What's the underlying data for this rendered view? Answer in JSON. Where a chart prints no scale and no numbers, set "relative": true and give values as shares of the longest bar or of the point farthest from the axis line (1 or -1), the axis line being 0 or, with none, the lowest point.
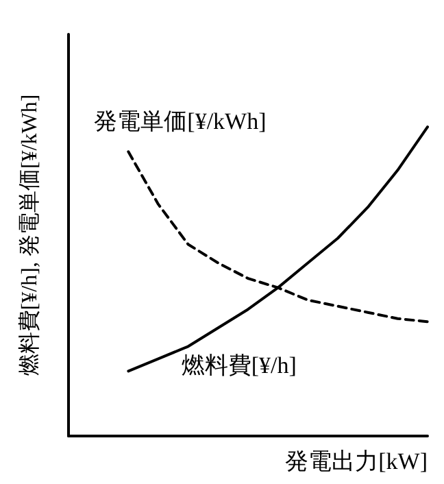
{
  "chart_data": {
    "type": "line",
    "relative": true,
    "xlabel": "発電出力[kW]",
    "ylabel": "燃料費[¥/h], 発電単価[¥/kWh]",
    "categories": [
      null,
      null,
      null,
      null,
      null,
      null,
      null,
      null,
      null,
      null,
      null,
      null,
      null
    ],
    "series": [
      {
        "name": "燃料費[¥/h]",
        "color": "#000000",
        "line_style": "solid",
        "values": [
          null,
          null,
          0.21,
          0.25,
          0.29,
          0.35,
          0.41,
          0.48,
          0.56,
          0.64,
          0.74,
          0.86,
          1
        ]
      },
      {
        "name": "発電単価[¥/kWh]",
        "color": "#000000",
        "line_style": "dashed",
        "values": [
          null,
          null,
          0.92,
          0.75,
          0.62,
          0.56,
          0.51,
          0.48,
          0.44,
          0.42,
          0.4,
          0.38,
          0.37
        ]
      }
    ],
    "grid": false,
    "legend": false,
    "marker": "none"
  }
}
